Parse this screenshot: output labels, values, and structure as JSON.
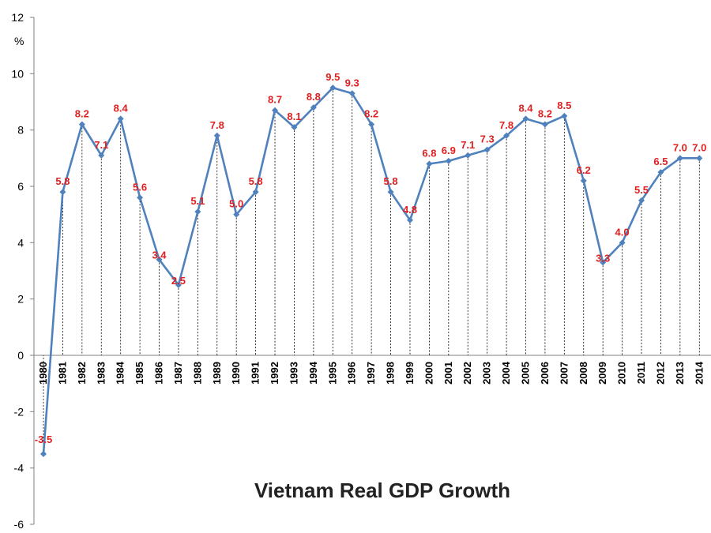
{
  "chart_data": {
    "type": "line",
    "title": "Vietnam Real GDP Growth",
    "ylabel": "%",
    "xlabel": "",
    "ylim": [
      -6,
      12
    ],
    "yticks": [
      -6,
      -4,
      -2,
      0,
      2,
      4,
      6,
      8,
      10,
      12
    ],
    "grid": false,
    "drop_lines": true,
    "series": [
      {
        "name": "Real GDP Growth",
        "color": "#4f81bd",
        "label_color": "#e02020",
        "x": [
          "1980",
          "1981",
          "1982",
          "1983",
          "1984",
          "1985",
          "1986",
          "1987",
          "1988",
          "1989",
          "1990",
          "1991",
          "1992",
          "1993",
          "1994",
          "1995",
          "1996",
          "1997",
          "1998",
          "1999",
          "2000",
          "2001",
          "2002",
          "2003",
          "2004",
          "2005",
          "2006",
          "2007",
          "2008",
          "2009",
          "2010",
          "2011",
          "2012",
          "2013",
          "2014"
        ],
        "values": [
          -3.5,
          5.8,
          8.2,
          7.1,
          8.4,
          5.6,
          3.4,
          2.5,
          5.1,
          7.8,
          5.0,
          5.8,
          8.7,
          8.1,
          8.8,
          9.5,
          9.3,
          8.2,
          5.8,
          4.8,
          6.8,
          6.9,
          7.1,
          7.3,
          7.8,
          8.4,
          8.2,
          8.5,
          6.2,
          3.3,
          4.0,
          5.5,
          6.5,
          7.0,
          7.0
        ],
        "labels": [
          "-3.5",
          "5.8",
          "8.2",
          "7.1",
          "8.4",
          "5.6",
          "3.4",
          "2.5",
          "5.1",
          "7.8",
          "5.0",
          "5.8",
          "8.7",
          "8.1",
          "8.8",
          "9.5",
          "9.3",
          "8.2",
          "5.8",
          "4.8",
          "6.8",
          "6.9",
          "7.1",
          "7.3",
          "7.8",
          "8.4",
          "8.2",
          "8.5",
          "6.2",
          "3.3",
          "4.0",
          "5.5",
          "6.5",
          "7.0",
          "7.0"
        ]
      }
    ]
  }
}
